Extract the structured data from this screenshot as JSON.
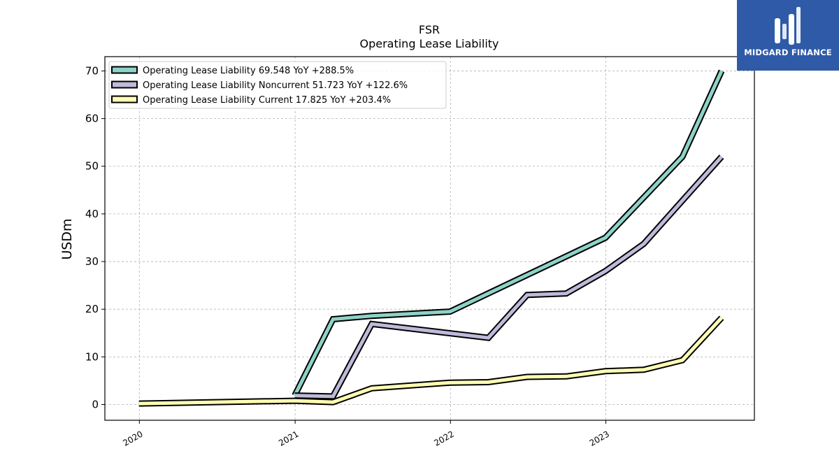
{
  "chart_data": {
    "type": "line",
    "title": "FSR",
    "subtitle": "Operating Lease Liability",
    "xlabel": "",
    "ylabel": "USDm",
    "x_tick_labels": [
      "2020",
      "2021",
      "2022",
      "2023"
    ],
    "y_ticks": [
      0,
      10,
      20,
      30,
      40,
      50,
      60,
      70
    ],
    "ylim": [
      -3.3,
      73
    ],
    "xlim": [
      "2019-10-12",
      "2023-12-16"
    ],
    "grid": true,
    "legend_position": "top-left",
    "series": [
      {
        "name": "Operating Lease Liability",
        "legend_label": "Operating Lease Liability  69.548 YoY +288.5%",
        "color": "#8dd3c7",
        "points": [
          {
            "x": "2020-12-31",
            "y": 1.9
          },
          {
            "x": "2021-03-31",
            "y": 17.9
          },
          {
            "x": "2021-06-30",
            "y": 18.6
          },
          {
            "x": "2021-12-31",
            "y": 19.5
          },
          {
            "x": "2022-12-31",
            "y": 35.0
          },
          {
            "x": "2023-06-30",
            "y": 52.0
          },
          {
            "x": "2023-09-30",
            "y": 70.0
          }
        ]
      },
      {
        "name": "Operating Lease Liability Noncurrent",
        "legend_label": "Operating Lease Liability Noncurrent  51.723 YoY +122.6%",
        "color": "#bebada",
        "points": [
          {
            "x": "2020-12-31",
            "y": 1.9
          },
          {
            "x": "2021-03-31",
            "y": 1.7
          },
          {
            "x": "2021-06-30",
            "y": 16.9
          },
          {
            "x": "2022-03-31",
            "y": 14.0
          },
          {
            "x": "2022-06-30",
            "y": 23.0
          },
          {
            "x": "2022-09-30",
            "y": 23.3
          },
          {
            "x": "2022-12-31",
            "y": 28.0
          },
          {
            "x": "2023-03-31",
            "y": 33.7
          },
          {
            "x": "2023-09-30",
            "y": 52.0
          }
        ]
      },
      {
        "name": "Operating Lease Liability Current",
        "legend_label": "Operating Lease Liability Current  17.825 YoY +203.4%",
        "color": "#ffffb3",
        "points": [
          {
            "x": "2019-12-31",
            "y": 0.2
          },
          {
            "x": "2020-12-31",
            "y": 0.8
          },
          {
            "x": "2021-03-31",
            "y": 0.5
          },
          {
            "x": "2021-06-30",
            "y": 3.4
          },
          {
            "x": "2021-12-31",
            "y": 4.6
          },
          {
            "x": "2022-03-31",
            "y": 4.7
          },
          {
            "x": "2022-06-30",
            "y": 5.8
          },
          {
            "x": "2022-09-30",
            "y": 5.9
          },
          {
            "x": "2022-12-31",
            "y": 7.0
          },
          {
            "x": "2023-03-31",
            "y": 7.3
          },
          {
            "x": "2023-06-30",
            "y": 9.3
          },
          {
            "x": "2023-09-30",
            "y": 18.2
          }
        ]
      }
    ]
  },
  "logo": {
    "text": "MIDGARD FINANCE",
    "background": "#2f5aa8",
    "icon": "midgard-logo-mark"
  }
}
